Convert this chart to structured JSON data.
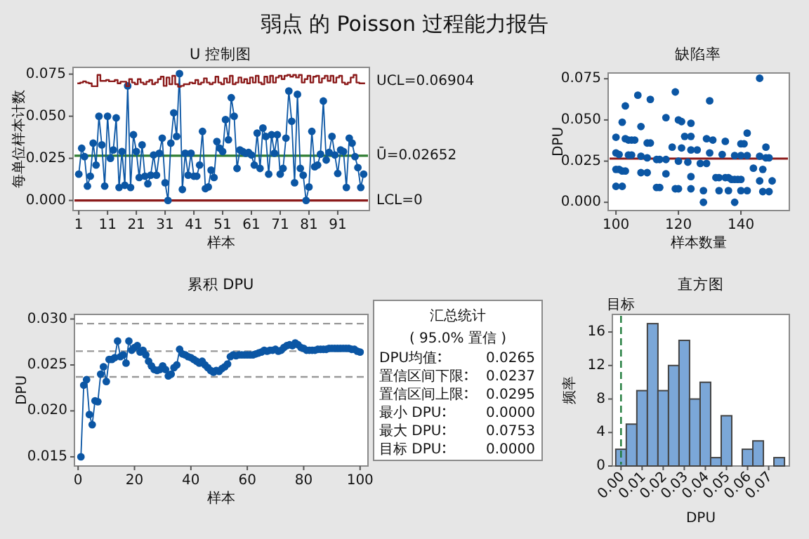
{
  "chart_data": [
    {
      "type": "other",
      "title": "弱点 的 Poisson 过程能力报告"
    },
    {
      "type": "line",
      "title": "U 控制图",
      "xlabel": "样本",
      "ylabel": "每单位样本计数",
      "marker": "circle",
      "x": [
        1,
        2,
        3,
        4,
        5,
        6,
        7,
        8,
        9,
        10,
        11,
        12,
        13,
        14,
        15,
        16,
        17,
        18,
        19,
        20,
        21,
        22,
        23,
        24,
        25,
        26,
        27,
        28,
        29,
        30,
        31,
        32,
        33,
        34,
        35,
        36,
        37,
        38,
        39,
        40,
        41,
        42,
        43,
        44,
        45,
        46,
        47,
        48,
        49,
        50,
        51,
        52,
        53,
        54,
        55,
        56,
        57,
        58,
        59,
        60,
        61,
        62,
        63,
        64,
        65,
        66,
        67,
        68,
        69,
        70,
        71,
        72,
        73,
        74,
        75,
        76,
        77,
        78,
        79,
        80,
        81,
        82,
        83,
        84,
        85,
        86,
        87,
        88,
        89,
        90,
        91,
        92,
        93,
        94,
        95,
        96,
        97,
        98,
        99,
        100
      ],
      "xlim": [
        -1,
        102
      ],
      "xticks": [
        1,
        11,
        21,
        31,
        41,
        51,
        61,
        71,
        81,
        91
      ],
      "ylim": [
        -0.006,
        0.079
      ],
      "yticks": [
        {
          "value": 0,
          "label": "0.000"
        },
        {
          "value": 0.025,
          "label": "0.025"
        },
        {
          "value": 0.05,
          "label": "0.050"
        },
        {
          "value": 0.075,
          "label": "0.075"
        }
      ],
      "series": [
        {
          "color": "#0b56a4",
          "values": [
            0.0156,
            0.031,
            0.026,
            0.0085,
            0.0144,
            0.034,
            0.021,
            0.05,
            0.033,
            0.0085,
            0.05,
            0.025,
            0.03,
            0.049,
            0.0077,
            0.029,
            0.009,
            0.068,
            0.0077,
            0.039,
            0.029,
            0.0136,
            0.033,
            0.0144,
            0.0099,
            0.015,
            0.027,
            0.015,
            0.028,
            0.037,
            0.0105,
            0,
            0.034,
            0.052,
            0.038,
            0.0753,
            0.0065,
            0.028,
            0.015,
            0.028,
            0.0144,
            0.0144,
            0.021,
            0.041,
            0.007,
            0.008,
            0.018,
            0.0136,
            0.035,
            0.031,
            0.029,
            0.048,
            0.036,
            0.061,
            0.05,
            0.019,
            0.03,
            0.029,
            0.028,
            0.0285,
            0.027,
            0.021,
            0.04,
            0.019,
            0.043,
            0.038,
            0.0156,
            0.039,
            0.028,
            0.039,
            0.0156,
            0.019,
            0.037,
            0.065,
            0.047,
            0.0105,
            0.063,
            0.019,
            0.015,
            0,
            0.008,
            0.041,
            0.02,
            0.021,
            0.0275,
            0.059,
            0.024,
            0.0285,
            0.038,
            0.027,
            0.016,
            0.03,
            0.029,
            0.0077,
            0.037,
            0.034,
            0.026,
            0.0195,
            0.0077,
            0.0156
          ]
        },
        {
          "type": "step",
          "marker": "none",
          "color": "#8b1a1a",
          "values": [
            0.0695,
            0.07,
            0.0707,
            0.07,
            0.0695,
            0.0678,
            0.0678,
            0.0745,
            0.071,
            0.071,
            0.0715,
            0.0707,
            0.0707,
            0.0715,
            0.0695,
            0.0705,
            0.0705,
            0.0678,
            0.072,
            0.07,
            0.069,
            0.072,
            0.07,
            0.069,
            0.0705,
            0.0715,
            0.069,
            0.07,
            0.072,
            0.0735,
            0.068,
            0.073,
            0.069,
            0.074,
            0.069,
            0.0675,
            0.068,
            0.069,
            0.069,
            0.07,
            0.0695,
            0.0715,
            0.069,
            0.07,
            0.0725,
            0.07,
            0.069,
            0.07,
            0.0735,
            0.07,
            0.069,
            0.0725,
            0.07,
            0.074,
            0.069,
            0.07,
            0.073,
            0.07,
            0.072,
            0.0695,
            0.073,
            0.07,
            0.074,
            0.07,
            0.069,
            0.0735,
            0.07,
            0.074,
            0.07,
            0.073,
            0.074,
            0.072,
            0.074,
            0.0745,
            0.0735,
            0.0745,
            0.073,
            0.0745,
            0.07,
            0.072,
            0.074,
            0.07,
            0.0735,
            0.074,
            0.07,
            0.0725,
            0.074,
            0.071,
            0.074,
            0.07,
            0.073,
            0.074,
            0.07,
            0.069,
            0.07,
            0.073,
            0.0745,
            0.07,
            0.0695,
            0.0695
          ]
        }
      ],
      "ref_lines": [
        {
          "axis": "y",
          "value": 0.02652,
          "label": "Ū=0.02652",
          "color": "#2f7d32"
        },
        {
          "axis": "y",
          "value": 0,
          "label": "LCL=0",
          "color": "#8b1a1a"
        }
      ],
      "annotations": [
        "UCL=0.06904"
      ]
    },
    {
      "type": "scatter",
      "title": "缺陷率",
      "xlabel": "样本数量",
      "ylabel": "DPU",
      "color": "#0b56a4",
      "xlim": [
        97.5,
        155.5
      ],
      "xticks": [
        100,
        120,
        140
      ],
      "ylim": [
        -0.005,
        0.0785
      ],
      "yticks": [
        {
          "value": 0,
          "label": "0.000"
        },
        {
          "value": 0.025,
          "label": "0.025"
        },
        {
          "value": 0.05,
          "label": "0.050"
        },
        {
          "value": 0.075,
          "label": "0.075"
        }
      ],
      "x": [
        100,
        100,
        100,
        100,
        101,
        101,
        102,
        102,
        102,
        103,
        103,
        103,
        104,
        104,
        105,
        105,
        106,
        107,
        108,
        108,
        108,
        110,
        110,
        110,
        111,
        111,
        113,
        113,
        114,
        114,
        116,
        116,
        116,
        118,
        119,
        119,
        120,
        120,
        120,
        121,
        121,
        122,
        123,
        124,
        124,
        124,
        124,
        124,
        126,
        127,
        128,
        128,
        129,
        129,
        130,
        130,
        131,
        132,
        133,
        133,
        134,
        135,
        135,
        136,
        136,
        137,
        138,
        138,
        138,
        139,
        140,
        140,
        140,
        140,
        141,
        142,
        142,
        142,
        144,
        146,
        146,
        146,
        147,
        147,
        148,
        148,
        149,
        149,
        150
      ],
      "values": [
        0.0395,
        0.03,
        0.02,
        0.0097,
        0.029,
        0.02,
        0.0486,
        0.019,
        0.0097,
        0.0585,
        0.0386,
        0.019,
        0.0287,
        0.0378,
        0.0378,
        0.0287,
        0.0378,
        0.065,
        0.046,
        0.028,
        0.018,
        0.036,
        0.027,
        0.018,
        0.0625,
        0.036,
        0.026,
        0.009,
        0.026,
        0.009,
        0.0514,
        0.026,
        0.0173,
        0.0335,
        0.067,
        0.0082,
        0.05,
        0.025,
        0.0082,
        0.049,
        0.033,
        0.04,
        0.0244,
        0.048,
        0.04,
        0.0318,
        0.0156,
        0.0082,
        0.0318,
        0.0236,
        0.0071,
        0,
        0.0386,
        0.0236,
        0.0616,
        0.03,
        0.0378,
        0.015,
        0.015,
        0.0071,
        0.029,
        0.037,
        0.015,
        0.015,
        0.0071,
        0.0139,
        0.0284,
        0.0139,
        0,
        0.0139,
        0.0355,
        0.0284,
        0.0139,
        0.0071,
        0.0355,
        0.042,
        0.0284,
        0.0071,
        0.0207,
        0.0753,
        0.028,
        0.013,
        0.02,
        0.0065,
        0.0335,
        0.027,
        0.027,
        0.0065,
        0.013
      ],
      "ref_lines": [
        {
          "axis": "y",
          "value": 0.02652,
          "color": "#8b1a1a"
        }
      ]
    },
    {
      "type": "line",
      "title": "累积 DPU",
      "xlabel": "样本",
      "ylabel": "DPU",
      "marker": "circle",
      "color": "#0b56a4",
      "xlim": [
        -1.3,
        102.8
      ],
      "xticks": [
        0,
        20,
        40,
        60,
        80,
        100
      ],
      "ylim": [
        0.014,
        0.0305
      ],
      "yticks": [
        0.015,
        {
          "value": 0.02,
          "label": "0.020"
        },
        0.025,
        {
          "value": 0.03,
          "label": "0.030"
        }
      ],
      "x": [
        1,
        2,
        3,
        4,
        5,
        6,
        7,
        8,
        9,
        10,
        11,
        12,
        13,
        14,
        15,
        16,
        17,
        18,
        19,
        20,
        21,
        22,
        23,
        24,
        25,
        26,
        27,
        28,
        29,
        30,
        31,
        32,
        33,
        34,
        35,
        36,
        37,
        38,
        39,
        40,
        41,
        42,
        43,
        44,
        45,
        46,
        47,
        48,
        49,
        50,
        51,
        52,
        53,
        54,
        55,
        56,
        57,
        58,
        59,
        60,
        61,
        62,
        63,
        64,
        65,
        66,
        67,
        68,
        69,
        70,
        71,
        72,
        73,
        74,
        75,
        76,
        77,
        78,
        79,
        80,
        81,
        82,
        83,
        84,
        85,
        86,
        87,
        88,
        89,
        90,
        91,
        92,
        93,
        94,
        95,
        96,
        97,
        98,
        99,
        100
      ],
      "values": [
        0.015,
        0.0228,
        0.0234,
        0.0196,
        0.0185,
        0.0211,
        0.021,
        0.024,
        0.0248,
        0.0232,
        0.0256,
        0.0256,
        0.0258,
        0.0276,
        0.0259,
        0.0261,
        0.0252,
        0.0276,
        0.0266,
        0.0269,
        0.0271,
        0.0264,
        0.0266,
        0.0261,
        0.0254,
        0.0249,
        0.0245,
        0.0244,
        0.0245,
        0.0249,
        0.0245,
        0.0238,
        0.024,
        0.0247,
        0.025,
        0.0267,
        0.0262,
        0.0261,
        0.0259,
        0.0258,
        0.0256,
        0.0254,
        0.0252,
        0.0254,
        0.025,
        0.0247,
        0.0244,
        0.0242,
        0.0244,
        0.0243,
        0.0246,
        0.0248,
        0.0251,
        0.0259,
        0.0261,
        0.026,
        0.0261,
        0.0261,
        0.0261,
        0.0261,
        0.0261,
        0.0261,
        0.0262,
        0.0263,
        0.0264,
        0.0266,
        0.0265,
        0.0266,
        0.0266,
        0.0267,
        0.0265,
        0.0266,
        0.0269,
        0.0271,
        0.0272,
        0.0271,
        0.0274,
        0.0272,
        0.0269,
        0.0268,
        0.0266,
        0.0266,
        0.0266,
        0.0266,
        0.0267,
        0.0267,
        0.0267,
        0.0267,
        0.0268,
        0.0268,
        0.0268,
        0.0268,
        0.0268,
        0.0268,
        0.0268,
        0.0268,
        0.0267,
        0.0267,
        0.0265,
        0.0264
      ],
      "ref_lines": [
        {
          "axis": "y",
          "value": 0.0295,
          "color": "#999999",
          "line_style": "dashed"
        },
        {
          "axis": "y",
          "value": 0.0265,
          "color": "#999999",
          "line_style": "dashed"
        },
        {
          "axis": "y",
          "value": 0.0237,
          "color": "#999999",
          "line_style": "dashed"
        }
      ]
    },
    {
      "type": "other",
      "title": "汇总统计",
      "subtitle": "( 95.0% 置信 )",
      "categories": [
        "DPU均值",
        "置信区间下限",
        "置信区间上限",
        "最小 DPU",
        "最大 DPU",
        "目标 DPU"
      ],
      "values": [
        0.0265,
        0.0237,
        0.0295,
        0,
        0.0753,
        0
      ],
      "value_labels": [
        "0.0265",
        "0.0237",
        "0.0295",
        "0.0000",
        "0.0753",
        "0.0000"
      ]
    },
    {
      "type": "histogram",
      "title": "直方图",
      "xlabel": "DPU",
      "ylabel": "频率",
      "color": "#7ba7d8",
      "bins": [
        -0.0025,
        0.0025,
        0.0075,
        0.0125,
        0.0175,
        0.0225,
        0.0275,
        0.0325,
        0.0375,
        0.0425,
        0.0475,
        0.0525,
        0.0575,
        0.0625,
        0.0675,
        0.0725,
        0.0775
      ],
      "values": [
        2,
        5,
        9,
        17,
        9,
        12,
        15,
        8,
        10,
        1,
        6,
        0,
        2,
        3,
        0,
        1
      ],
      "xlim": [
        -0.0041,
        0.0798
      ],
      "xticks": [
        {
          "value": 0,
          "label": "0.00"
        },
        {
          "value": 0.01,
          "label": "0.01"
        },
        {
          "value": 0.02,
          "label": "0.02"
        },
        {
          "value": 0.03,
          "label": "0.03"
        },
        {
          "value": 0.04,
          "label": "0.04"
        },
        {
          "value": 0.05,
          "label": "0.05"
        },
        {
          "value": 0.06,
          "label": "0.06"
        },
        {
          "value": 0.07,
          "label": "0.07"
        }
      ],
      "ylim": [
        0,
        18.1
      ],
      "yticks": [
        0,
        4,
        8,
        12,
        16
      ],
      "ref_lines": [
        {
          "axis": "x",
          "value": 0,
          "label": "目标",
          "color": "#1e7b3a",
          "line_style": "dashed"
        }
      ]
    }
  ]
}
